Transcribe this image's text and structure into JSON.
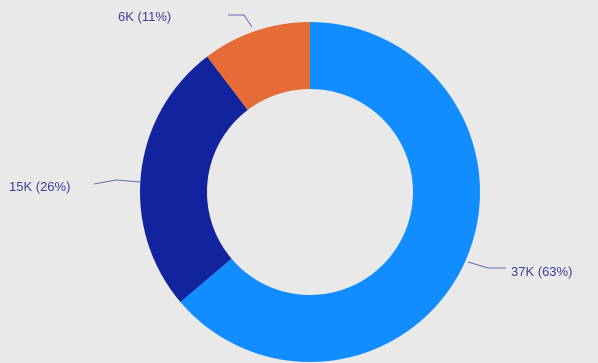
{
  "chart_data": {
    "type": "pie",
    "title": "",
    "variant": "donut",
    "slices": [
      {
        "value": 37,
        "label": "37K (63%)",
        "color": "#118dff"
      },
      {
        "value": 15,
        "label": "15K (26%)",
        "color": "#12239e"
      },
      {
        "value": 6,
        "label": "6K (11%)",
        "color": "#e66c37"
      }
    ],
    "colors": {
      "background": "#e9e9e9",
      "label_text": "#3b3f98"
    }
  }
}
